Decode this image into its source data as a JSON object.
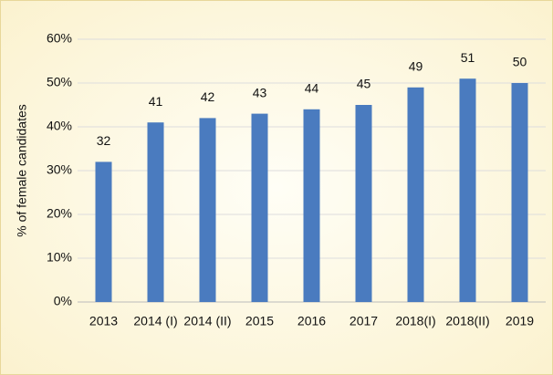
{
  "chart_data": {
    "type": "bar",
    "y_label": "% of female candidates",
    "categories": [
      "2013",
      "2014 (I)",
      "2014 (II)",
      "2015",
      "2016",
      "2017",
      "2018(I)",
      "2018(II)",
      "2019"
    ],
    "values": [
      32,
      41,
      42,
      43,
      44,
      45,
      49,
      51,
      50
    ],
    "color": "#4a7bbf",
    "ylim": [
      0,
      60
    ],
    "yticks": [
      {
        "value": 0,
        "label": "0%"
      },
      {
        "value": 10,
        "label": "10%"
      },
      {
        "value": 20,
        "label": "20%"
      },
      {
        "value": 30,
        "label": "30%"
      },
      {
        "value": 40,
        "label": "40%"
      },
      {
        "value": 50,
        "label": "50%"
      },
      {
        "value": 60,
        "label": "60%"
      }
    ],
    "grid": true
  }
}
